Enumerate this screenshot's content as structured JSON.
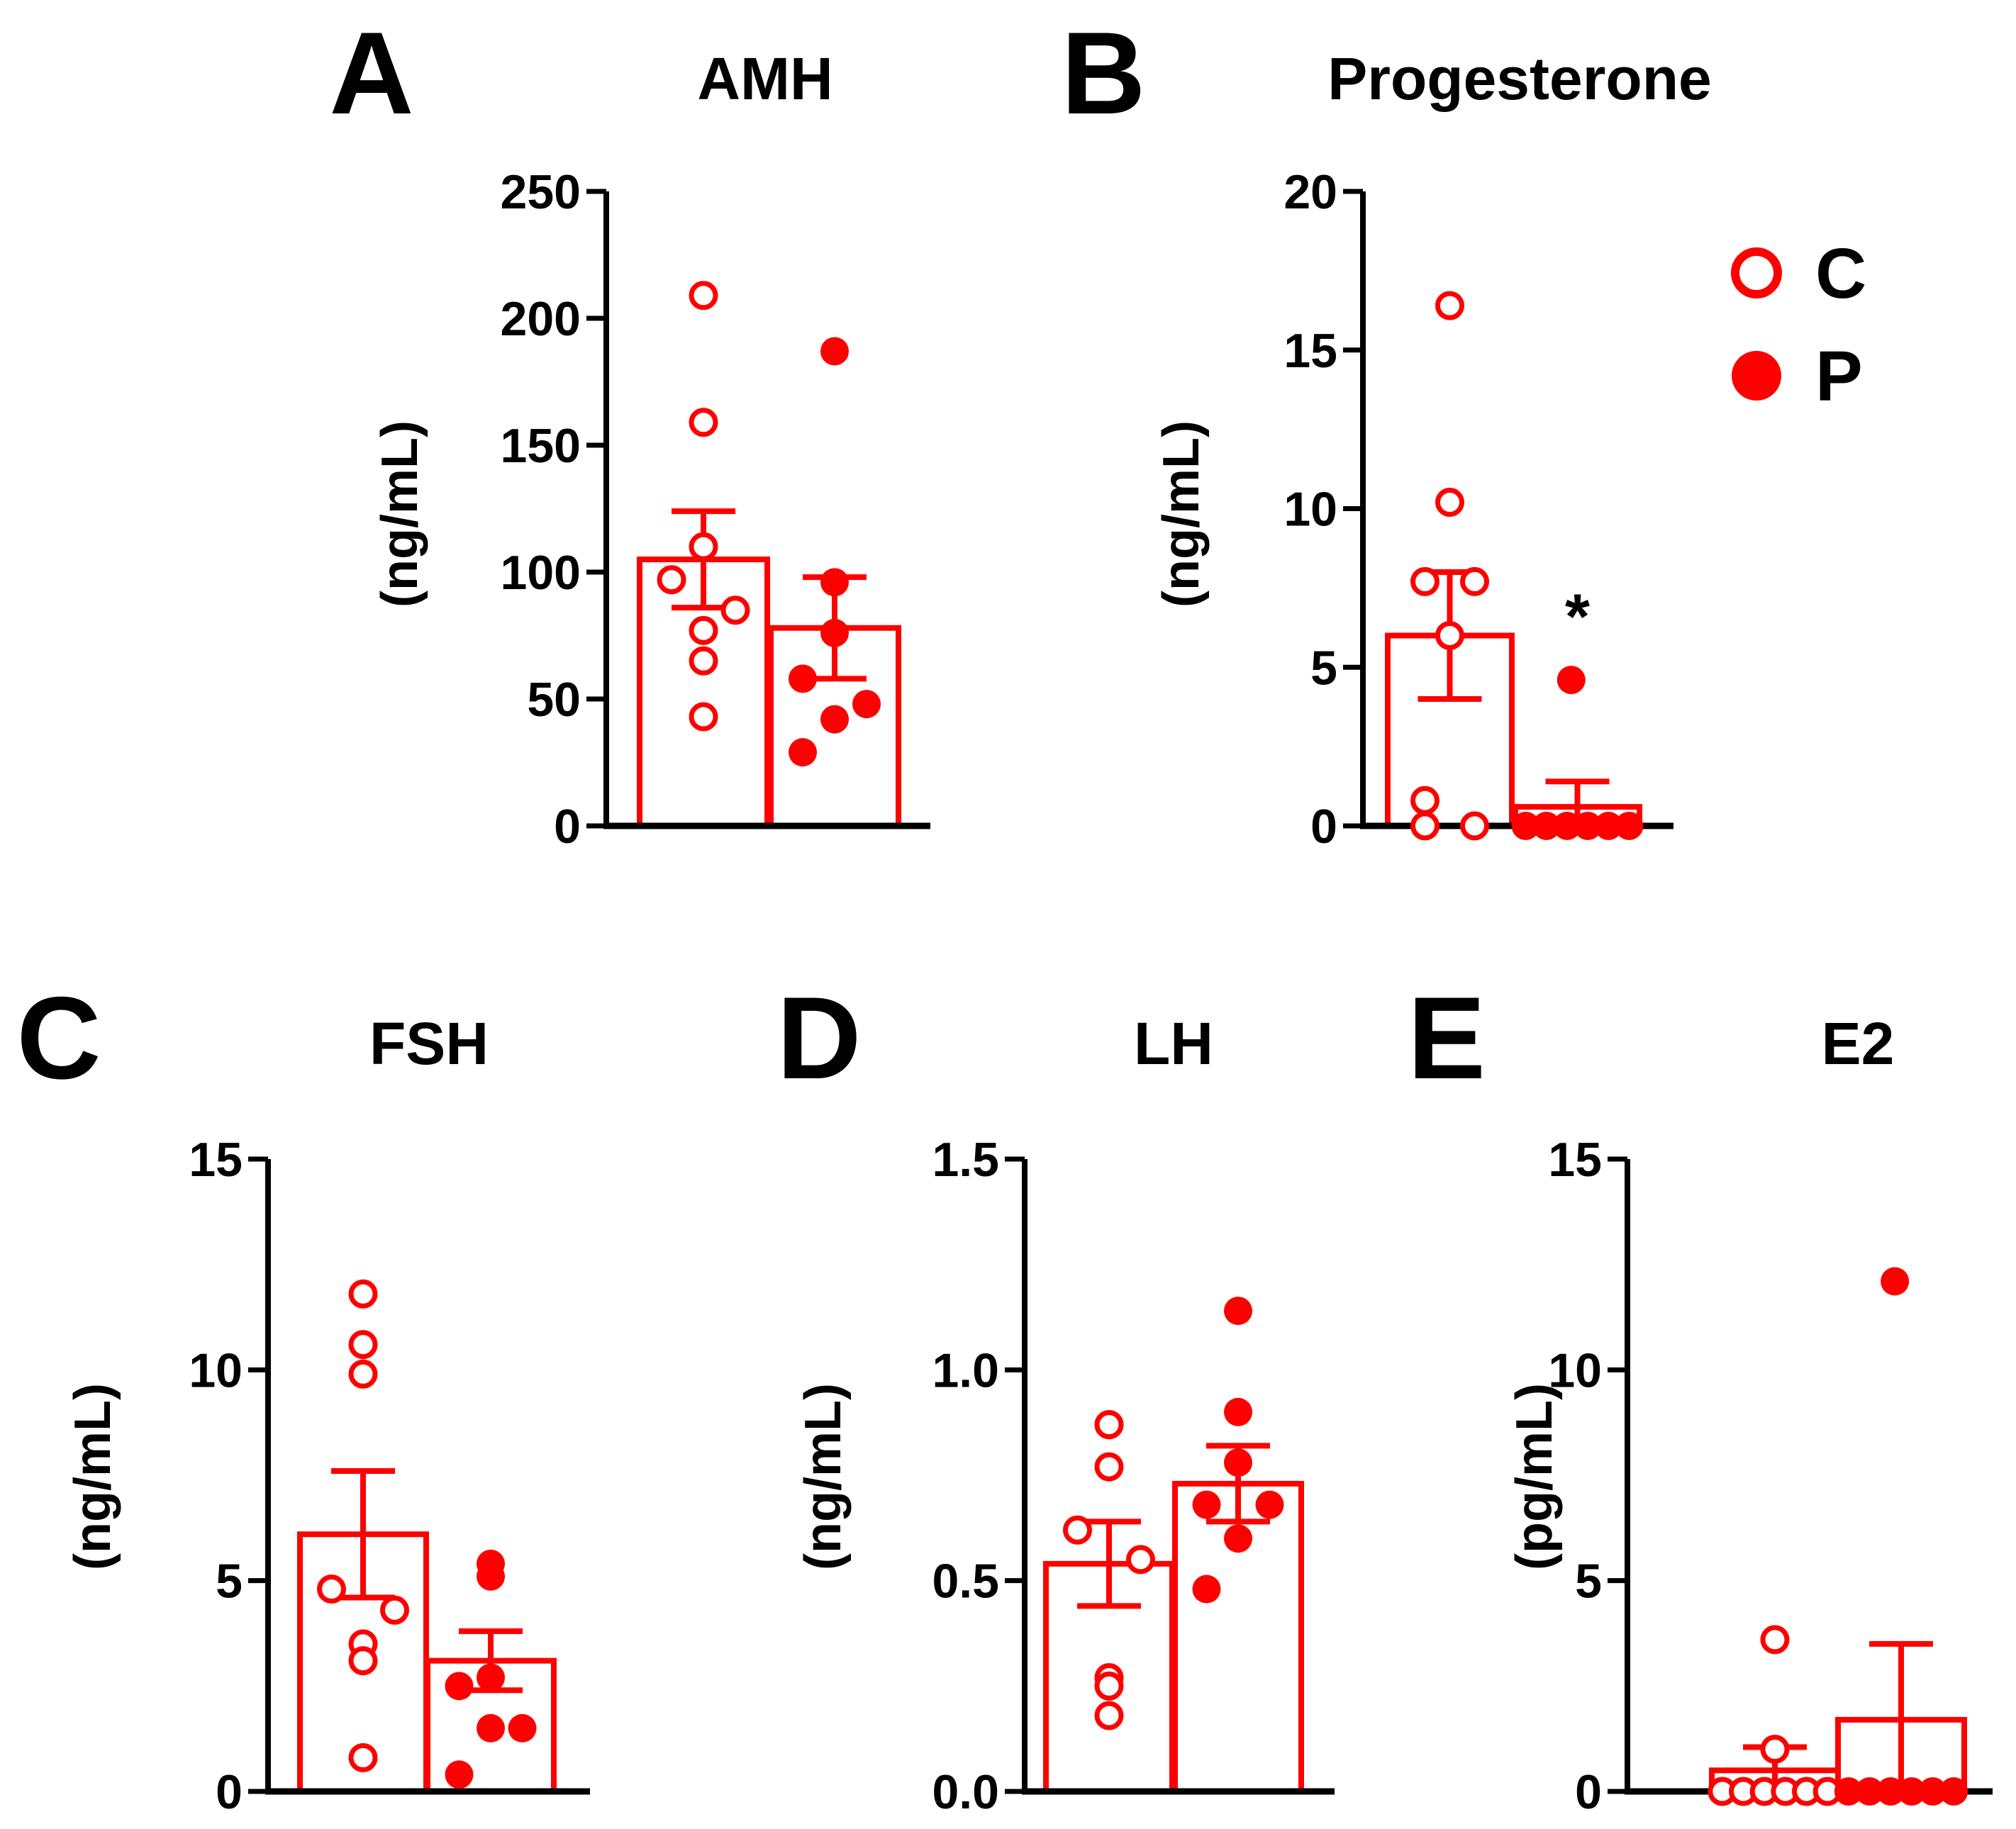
{
  "figure": {
    "colors": {
      "series": "#ff0000",
      "axis": "#000000"
    },
    "legend": {
      "position": "top-right",
      "items": [
        {
          "label": "C",
          "marker": "open-circle"
        },
        {
          "label": "P",
          "marker": "filled-circle"
        }
      ]
    }
  },
  "chart_data": [
    {
      "panel": "A",
      "type": "bar",
      "title": "AMH",
      "ylabel": "(ng/mL)",
      "ylim": [
        0,
        250
      ],
      "yticks": [
        0,
        50,
        100,
        150,
        200,
        250
      ],
      "categories": [
        "C",
        "P"
      ],
      "series": [
        {
          "name": "C",
          "mean": 105,
          "sem": 19,
          "points": [
            209,
            159,
            110,
            97,
            85,
            77,
            65,
            43
          ]
        },
        {
          "name": "P",
          "mean": 78,
          "sem": 20,
          "points": [
            187,
            96,
            76,
            58,
            48,
            42,
            29
          ]
        }
      ],
      "annotations": []
    },
    {
      "panel": "B",
      "type": "bar",
      "title": "Progesterone",
      "ylabel": "(ng/mL)",
      "ylim": [
        0,
        20
      ],
      "yticks": [
        0,
        5,
        10,
        15,
        20
      ],
      "categories": [
        "C",
        "P"
      ],
      "series": [
        {
          "name": "C",
          "mean": 6.0,
          "sem": 2.0,
          "points": [
            16.4,
            10.2,
            7.7,
            7.7,
            6.0,
            0.8,
            0.0,
            0.0
          ]
        },
        {
          "name": "P",
          "mean": 0.6,
          "sem": 0.8,
          "points": [
            4.6,
            0.0,
            0.0,
            0.0,
            0.0,
            0.0,
            0.0
          ]
        }
      ],
      "annotations": [
        {
          "text": "*",
          "series": "P",
          "y": 6.8
        }
      ]
    },
    {
      "panel": "C",
      "type": "bar",
      "title": "FSH",
      "ylabel": "(ng/mL)",
      "ylim": [
        0,
        15
      ],
      "yticks": [
        0,
        5,
        10,
        15
      ],
      "categories": [
        "C",
        "P"
      ],
      "series": [
        {
          "name": "C",
          "mean": 6.1,
          "sem": 1.5,
          "points": [
            11.8,
            10.6,
            9.9,
            4.8,
            4.3,
            3.5,
            3.1,
            0.8
          ]
        },
        {
          "name": "P",
          "mean": 3.1,
          "sem": 0.7,
          "points": [
            5.4,
            5.1,
            2.7,
            2.5,
            1.5,
            1.5,
            0.4
          ]
        }
      ],
      "annotations": []
    },
    {
      "panel": "D",
      "type": "bar",
      "title": "LH",
      "ylabel": "(ng/mL)",
      "ylim": [
        0,
        1.5
      ],
      "yticks": [
        "0.0",
        "0.5",
        "1.0",
        "1.5"
      ],
      "categories": [
        "C",
        "P"
      ],
      "series": [
        {
          "name": "C",
          "mean": 0.54,
          "sem": 0.1,
          "points": [
            0.87,
            0.87,
            0.77,
            0.62,
            0.55,
            0.27,
            0.25,
            0.18
          ]
        },
        {
          "name": "P",
          "mean": 0.73,
          "sem": 0.09,
          "points": [
            1.14,
            0.9,
            0.78,
            0.68,
            0.68,
            0.6,
            0.48
          ]
        }
      ],
      "annotations": []
    },
    {
      "panel": "E",
      "type": "bar",
      "title": "E2",
      "ylabel": "(pg/mL)",
      "ylim": [
        0,
        15
      ],
      "yticks": [
        0,
        5,
        10,
        15
      ],
      "categories": [
        "C",
        "P"
      ],
      "series": [
        {
          "name": "C",
          "mean": 0.5,
          "sem": 0.55,
          "points": [
            3.6,
            1.0,
            0.0,
            0.0,
            0.0,
            0.0,
            0.0,
            0.0
          ]
        },
        {
          "name": "P",
          "mean": 1.7,
          "sem": 1.8,
          "points": [
            12.1,
            0.0,
            0.0,
            0.0,
            0.0,
            0.0,
            0.0
          ]
        }
      ],
      "annotations": []
    }
  ]
}
